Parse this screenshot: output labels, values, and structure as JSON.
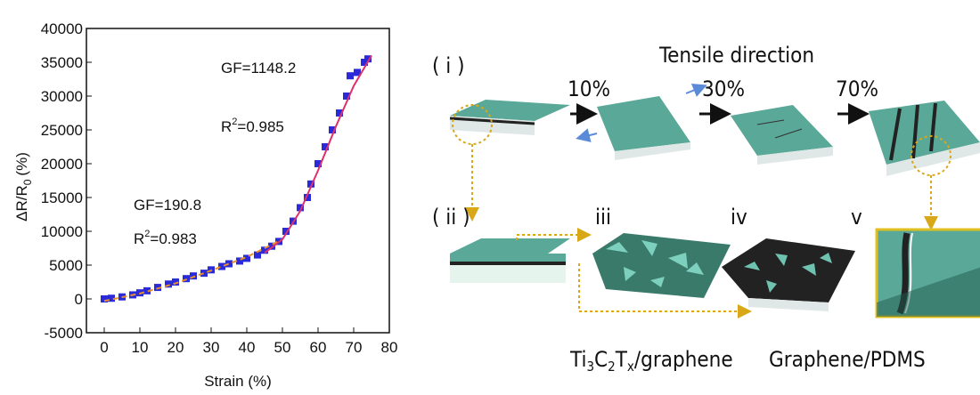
{
  "chart_data": {
    "type": "scatter",
    "x_label": "Strain (%)",
    "y_label": {
      "main": "ΔR/R",
      "sub": "0",
      "unit": "(%)"
    },
    "xlim": [
      -5,
      80
    ],
    "xticks": [
      0,
      10,
      20,
      30,
      40,
      50,
      60,
      70,
      80
    ],
    "ylim": [
      -5000,
      40000
    ],
    "yticks": [
      -5000,
      0,
      5000,
      10000,
      15000,
      20000,
      25000,
      30000,
      35000,
      40000
    ],
    "series": [
      {
        "color": "#2a2ad8",
        "x": [
          0,
          2,
          5,
          8,
          10,
          12,
          15,
          18,
          20,
          23,
          25,
          28,
          30,
          33,
          35,
          38,
          40,
          43,
          45,
          47,
          49,
          51,
          53,
          55,
          57,
          58,
          60,
          62,
          64,
          66,
          68,
          69,
          71,
          73,
          74
        ],
        "values": [
          0,
          100,
          300,
          600,
          900,
          1200,
          1700,
          2200,
          2500,
          3000,
          3400,
          3800,
          4300,
          4800,
          5200,
          5600,
          6000,
          6500,
          7200,
          7800,
          8500,
          10000,
          11500,
          13500,
          15000,
          17000,
          20000,
          22500,
          25000,
          27500,
          30000,
          33000,
          33500,
          35000,
          35500
        ]
      }
    ],
    "fit_lines": [
      {
        "color": "#e8902a",
        "x": [
          0,
          10,
          20,
          30,
          40,
          50
        ],
        "values": [
          -300,
          800,
          2300,
          4200,
          6200,
          8800
        ]
      },
      {
        "color": "#e0306a",
        "x": [
          45,
          50,
          55,
          60,
          65,
          70,
          75
        ],
        "values": [
          6800,
          8800,
          13000,
          19000,
          25500,
          31500,
          36000
        ]
      }
    ],
    "annotations": [
      {
        "gf": "GF=1148.2",
        "r": "R",
        "sup": "2",
        "rv": "=0.985"
      },
      {
        "gf": "GF=190.8",
        "r": "R",
        "sup": "2",
        "rv": "=0.983"
      }
    ]
  },
  "diagram": {
    "row1": "( i )",
    "direction": "Tensile direction",
    "strains": [
      "10%",
      "30%",
      "70%"
    ],
    "row2": "( ii )",
    "stages": [
      "iii",
      "iv",
      "v"
    ],
    "material_1": [
      "Ti",
      "3",
      "C",
      "2",
      "T",
      "x",
      "/graphene"
    ],
    "material_2": "Graphene/PDMS"
  }
}
